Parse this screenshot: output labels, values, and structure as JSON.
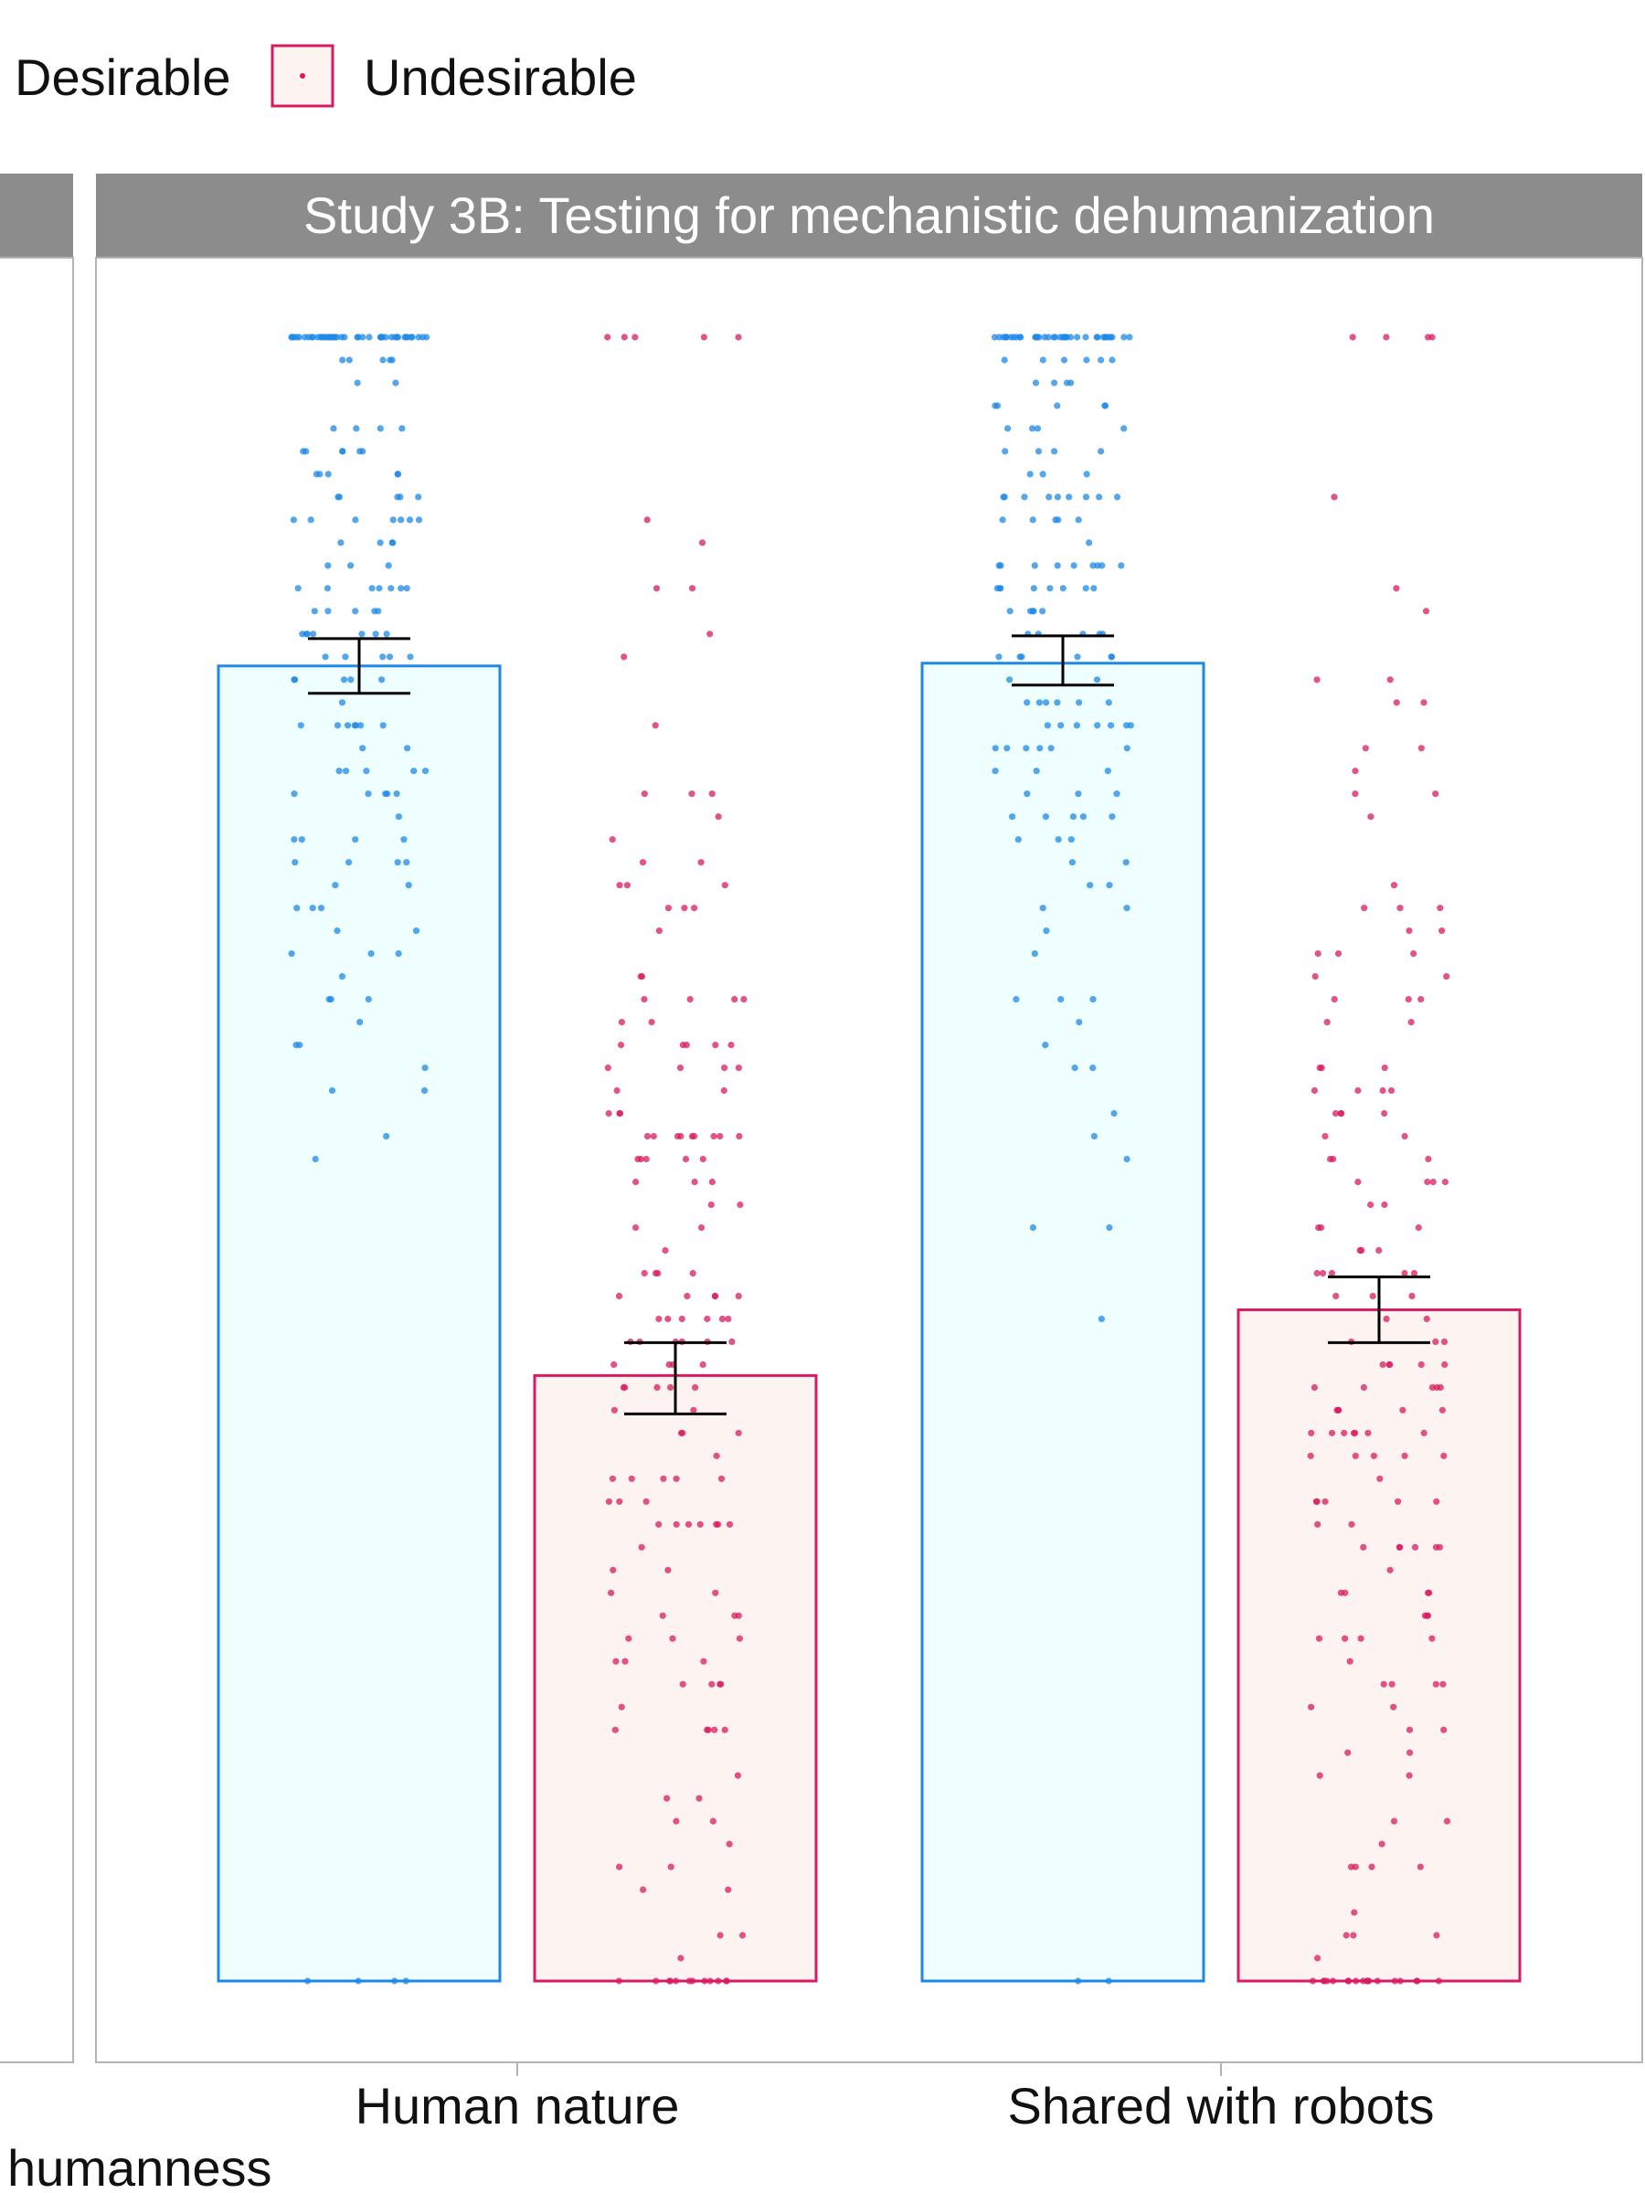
{
  "chart_data": {
    "type": "bar",
    "title": "",
    "panel_title": "Study 3B: Testing for mechanistic dehumanization",
    "xlabel": "humanness",
    "ylabel": "",
    "categories": [
      "Human nature",
      "Shared with robots"
    ],
    "legend": {
      "placement": "top-left",
      "entries": [
        "Desirable",
        "Undesirable"
      ]
    },
    "grid": false,
    "ylim": [
      1,
      7
    ],
    "series": [
      {
        "name": "Desirable",
        "color": "#1E88E5",
        "fill": "#EFFEFE",
        "values": [
          5.8,
          5.81
        ],
        "error_low": [
          5.7,
          5.73
        ],
        "error_high": [
          5.9,
          5.91
        ]
      },
      {
        "name": "Undesirable",
        "color": "#D81B60",
        "fill": "#FDF3F0",
        "values": [
          3.21,
          3.45
        ],
        "error_low": [
          3.07,
          3.33
        ],
        "error_high": [
          3.33,
          3.57
        ]
      }
    ]
  }
}
